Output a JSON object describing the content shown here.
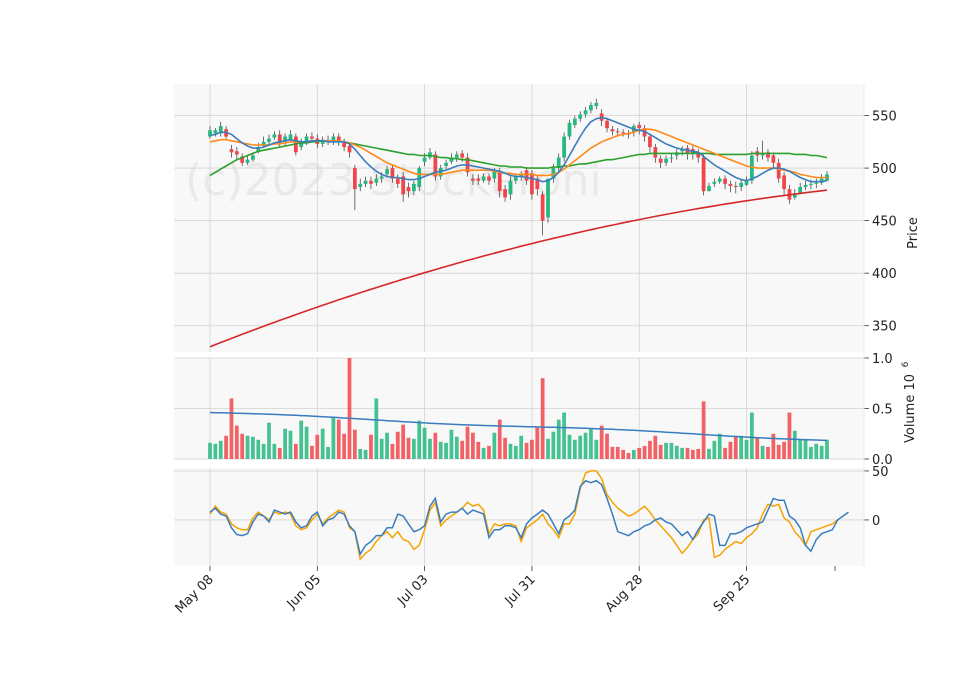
{
  "watermark": "(c)2023 Stockaroni",
  "colors": {
    "up": "#26b97f",
    "down": "#f0464b",
    "ma_blue": "#3a7dbd",
    "ma_orange": "#ff8a1c",
    "ma_green": "#2ca02c",
    "ma_red": "#d62728",
    "osc_blue": "#3a7dbd",
    "osc_orange": "#f5a300",
    "panel_bg": "#f8f8f8",
    "grid": "#d3d3d3"
  },
  "price_panel": {
    "ylabel": "Price",
    "ylim": [
      325,
      580
    ],
    "ticks": [
      350,
      400,
      450,
      500,
      550
    ]
  },
  "volume_panel": {
    "ylabel": "Volume  10",
    "ylabel_exp": "6",
    "ylim": [
      0,
      1.0
    ],
    "ticks": [
      "0.0",
      "0.5",
      "1.0"
    ],
    "tick_values": [
      0,
      0.5,
      1.0
    ]
  },
  "osc_panel": {
    "ylim": [
      -47,
      53
    ],
    "ticks": [
      0,
      50
    ]
  },
  "x_labels": [
    {
      "label": "May 08",
      "index": 0
    },
    {
      "label": "Jun 05",
      "index": 20
    },
    {
      "label": "Jul 03",
      "index": 40
    },
    {
      "label": "Jul 31",
      "index": 60
    },
    {
      "label": "Aug 28",
      "index": 80
    },
    {
      "label": "Sep 25",
      "index": 100
    }
  ],
  "chart_data": {
    "type": "candlestick",
    "title": "",
    "closes": [
      536,
      536,
      540,
      530,
      515,
      513,
      505,
      508,
      512,
      520,
      525,
      528,
      532,
      524,
      530,
      532,
      515,
      525,
      530,
      528,
      523,
      527,
      527,
      530,
      525,
      520,
      515,
      480,
      485,
      488,
      485,
      490,
      492,
      499,
      490,
      485,
      475,
      478,
      485,
      500,
      510,
      515,
      492,
      500,
      505,
      510,
      513,
      510,
      496,
      488,
      488,
      492,
      488,
      497,
      478,
      472,
      488,
      492,
      494,
      488,
      475,
      480,
      450,
      490,
      500,
      510,
      530,
      543,
      547,
      551,
      555,
      560,
      562,
      545,
      538,
      535,
      534,
      533,
      532,
      540,
      538,
      530,
      520,
      510,
      505,
      509,
      510,
      515,
      518,
      514,
      514,
      510,
      478,
      483,
      487,
      490,
      485,
      483,
      482,
      486,
      488,
      512,
      512,
      514,
      510,
      505,
      490,
      480,
      470,
      476,
      482,
      484,
      485,
      486,
      490,
      494
    ],
    "opens": [
      530,
      533,
      533,
      537,
      518,
      516,
      511,
      505,
      508,
      516,
      521,
      525,
      529,
      532,
      525,
      527,
      530,
      520,
      525,
      530,
      528,
      523,
      525,
      525,
      530,
      524,
      521,
      500,
      482,
      485,
      488,
      486,
      490,
      494,
      500,
      490,
      492,
      482,
      478,
      482,
      506,
      510,
      513,
      492,
      502,
      506,
      510,
      514,
      510,
      490,
      490,
      488,
      492,
      490,
      496,
      480,
      475,
      488,
      492,
      498,
      495,
      490,
      475,
      453,
      490,
      500,
      510,
      530,
      541,
      547,
      551,
      555,
      559,
      552,
      545,
      537,
      535,
      534,
      533,
      534,
      541,
      538,
      530,
      520,
      509,
      505,
      510,
      512,
      516,
      519,
      518,
      515,
      510,
      478,
      485,
      487,
      490,
      485,
      483,
      482,
      484,
      488,
      516,
      512,
      515,
      512,
      505,
      493,
      480,
      472,
      476,
      482,
      484,
      485,
      486,
      488
    ],
    "highs": [
      540,
      538,
      544,
      540,
      522,
      520,
      514,
      512,
      515,
      524,
      530,
      532,
      535,
      536,
      533,
      536,
      533,
      528,
      533,
      534,
      532,
      530,
      531,
      533,
      533,
      528,
      524,
      503,
      490,
      492,
      492,
      494,
      496,
      502,
      503,
      494,
      496,
      486,
      488,
      502,
      514,
      519,
      516,
      503,
      508,
      514,
      516,
      517,
      514,
      494,
      494,
      495,
      495,
      500,
      500,
      484,
      492,
      495,
      497,
      501,
      498,
      494,
      478,
      465,
      504,
      514,
      534,
      546,
      550,
      554,
      558,
      563,
      566,
      556,
      548,
      540,
      538,
      537,
      536,
      542,
      544,
      541,
      533,
      523,
      512,
      512,
      514,
      518,
      521,
      522,
      521,
      518,
      513,
      486,
      490,
      492,
      493,
      488,
      487,
      490,
      492,
      516,
      520,
      526,
      518,
      515,
      509,
      496,
      484,
      480,
      486,
      488,
      489,
      490,
      494,
      497
    ],
    "lows": [
      528,
      530,
      530,
      528,
      510,
      508,
      502,
      503,
      506,
      514,
      519,
      522,
      527,
      520,
      521,
      525,
      512,
      517,
      522,
      524,
      519,
      520,
      522,
      522,
      521,
      516,
      510,
      460,
      478,
      482,
      480,
      483,
      486,
      491,
      486,
      481,
      468,
      472,
      474,
      478,
      502,
      508,
      488,
      489,
      499,
      504,
      506,
      506,
      492,
      484,
      484,
      486,
      484,
      486,
      472,
      468,
      470,
      485,
      488,
      484,
      470,
      474,
      436,
      448,
      486,
      496,
      506,
      527,
      538,
      544,
      548,
      552,
      556,
      540,
      534,
      531,
      530,
      530,
      528,
      530,
      532,
      525,
      515,
      505,
      500,
      502,
      505,
      508,
      512,
      508,
      508,
      505,
      474,
      478,
      482,
      485,
      480,
      477,
      476,
      478,
      483,
      485,
      506,
      508,
      506,
      500,
      486,
      474,
      466,
      470,
      476,
      479,
      480,
      481,
      484,
      488
    ],
    "volumes": [
      0.16,
      0.15,
      0.18,
      0.23,
      0.6,
      0.33,
      0.25,
      0.23,
      0.22,
      0.19,
      0.15,
      0.36,
      0.15,
      0.11,
      0.3,
      0.28,
      0.15,
      0.38,
      0.32,
      0.13,
      0.24,
      0.3,
      0.12,
      0.41,
      0.39,
      0.25,
      1.0,
      0.29,
      0.1,
      0.09,
      0.24,
      0.6,
      0.2,
      0.26,
      0.15,
      0.27,
      0.34,
      0.21,
      0.2,
      0.38,
      0.31,
      0.2,
      0.26,
      0.17,
      0.16,
      0.29,
      0.22,
      0.18,
      0.32,
      0.26,
      0.17,
      0.11,
      0.13,
      0.26,
      0.39,
      0.21,
      0.15,
      0.13,
      0.23,
      0.16,
      0.19,
      0.31,
      0.8,
      0.2,
      0.27,
      0.39,
      0.46,
      0.24,
      0.19,
      0.23,
      0.26,
      0.3,
      0.19,
      0.33,
      0.25,
      0.12,
      0.12,
      0.09,
      0.06,
      0.09,
      0.11,
      0.13,
      0.18,
      0.23,
      0.14,
      0.16,
      0.16,
      0.13,
      0.11,
      0.11,
      0.09,
      0.1,
      0.57,
      0.1,
      0.18,
      0.25,
      0.11,
      0.17,
      0.23,
      0.23,
      0.19,
      0.46,
      0.21,
      0.13,
      0.12,
      0.25,
      0.14,
      0.17,
      0.46,
      0.28,
      0.19,
      0.2,
      0.12,
      0.15,
      0.13,
      0.19
    ],
    "osc_blue": [
      8,
      12,
      6,
      4,
      -8,
      -15,
      -16,
      -14,
      -2,
      6,
      4,
      -2,
      10,
      8,
      6,
      8,
      -2,
      -8,
      -6,
      4,
      8,
      -6,
      0,
      2,
      8,
      6,
      -6,
      -12,
      -35,
      -26,
      -22,
      -16,
      -16,
      -8,
      -8,
      6,
      4,
      -4,
      -12,
      -10,
      -6,
      14,
      22,
      -2,
      6,
      8,
      8,
      12,
      6,
      10,
      8,
      6,
      -18,
      -10,
      -10,
      -6,
      -6,
      -8,
      -18,
      -4,
      2,
      6,
      10,
      6,
      -4,
      -14,
      0,
      4,
      10,
      34,
      40,
      38,
      40,
      36,
      22,
      6,
      -12,
      -14,
      -16,
      -12,
      -10,
      -6,
      -4,
      0,
      2,
      -2,
      -4,
      -10,
      -16,
      -12,
      -20,
      -10,
      -2,
      6,
      4,
      -26,
      -26,
      -14,
      -14,
      -12,
      -8,
      -6,
      -4,
      -2,
      10,
      22,
      20,
      20,
      4,
      0,
      -8,
      -26,
      -32,
      -20,
      -14,
      -12,
      -10,
      0,
      4,
      8
    ],
    "osc_orange": [
      6,
      14,
      8,
      6,
      -4,
      -8,
      -10,
      -10,
      2,
      8,
      4,
      0,
      8,
      6,
      8,
      6,
      -6,
      -10,
      -8,
      0,
      6,
      -4,
      2,
      6,
      10,
      8,
      -8,
      -12,
      -40,
      -34,
      -30,
      -22,
      -16,
      -12,
      -18,
      -12,
      -20,
      -22,
      -30,
      -26,
      -10,
      10,
      18,
      -6,
      0,
      4,
      8,
      12,
      18,
      14,
      16,
      10,
      -14,
      -4,
      -6,
      -4,
      -4,
      -6,
      -22,
      -8,
      -4,
      0,
      6,
      -4,
      -10,
      -18,
      -4,
      -4,
      6,
      32,
      48,
      50,
      50,
      42,
      26,
      18,
      12,
      8,
      4,
      6,
      10,
      14,
      8,
      0,
      -6,
      -12,
      -18,
      -26,
      -34,
      -28,
      -20,
      -14,
      0,
      2,
      -38,
      -36,
      -30,
      -26,
      -22,
      -24,
      -18,
      -14,
      -8,
      6,
      16,
      14,
      16,
      2,
      -2,
      -12,
      -18,
      -26,
      -12,
      -10,
      -8,
      -6,
      -4,
      0
    ],
    "ma_blue": [
      531,
      532,
      534,
      534,
      532,
      528,
      524,
      521,
      519,
      519,
      520,
      522,
      524,
      525,
      526,
      527,
      526,
      525,
      525,
      526,
      526,
      526,
      525,
      525,
      525,
      525,
      523,
      518,
      512,
      506,
      501,
      497,
      494,
      492,
      491,
      491,
      490,
      489,
      489,
      490,
      492,
      494,
      496,
      497,
      498,
      500,
      502,
      503,
      503,
      502,
      501,
      500,
      499,
      498,
      497,
      495,
      493,
      492,
      492,
      491,
      490,
      489,
      487,
      488,
      491,
      496,
      503,
      512,
      521,
      530,
      538,
      544,
      547,
      548,
      547,
      545,
      543,
      541,
      539,
      537,
      536,
      535,
      532,
      529,
      526,
      523,
      521,
      519,
      518,
      517,
      516,
      515,
      511,
      507,
      503,
      500,
      497,
      494,
      491,
      489,
      488,
      490,
      492,
      495,
      498,
      500,
      500,
      499,
      497,
      494,
      491,
      489,
      487,
      487,
      487,
      488
    ],
    "ma_orange": [
      525,
      526,
      527,
      527,
      526,
      525,
      524,
      523,
      522,
      522,
      522,
      522,
      523,
      523,
      524,
      525,
      525,
      525,
      525,
      526,
      526,
      526,
      526,
      526,
      526,
      525,
      524,
      522,
      520,
      517,
      514,
      511,
      508,
      505,
      503,
      501,
      499,
      497,
      495,
      494,
      494,
      494,
      494,
      494,
      495,
      496,
      497,
      498,
      498,
      498,
      498,
      498,
      498,
      497,
      496,
      495,
      495,
      494,
      494,
      494,
      494,
      493,
      493,
      493,
      494,
      496,
      499,
      503,
      507,
      511,
      515,
      519,
      522,
      525,
      527,
      529,
      531,
      532,
      533,
      534,
      536,
      537,
      537,
      536,
      534,
      532,
      530,
      528,
      526,
      524,
      522,
      520,
      518,
      516,
      514,
      512,
      510,
      508,
      506,
      504,
      502,
      501,
      500,
      500,
      500,
      500,
      499,
      498,
      497,
      496,
      494,
      493,
      492,
      491,
      491,
      491
    ],
    "ma_green": [
      493,
      496,
      499,
      502,
      505,
      508,
      510,
      512,
      514,
      516,
      517,
      518,
      519,
      520,
      521,
      522,
      523,
      524,
      524,
      525,
      525,
      526,
      526,
      526,
      525,
      525,
      524,
      523,
      522,
      521,
      520,
      519,
      518,
      517,
      516,
      515,
      514,
      513,
      513,
      512,
      512,
      512,
      511,
      510,
      510,
      509,
      509,
      508,
      508,
      507,
      506,
      505,
      504,
      503,
      502,
      502,
      501,
      501,
      501,
      500,
      500,
      500,
      500,
      500,
      501,
      501,
      502,
      502,
      503,
      504,
      504,
      505,
      506,
      507,
      508,
      508,
      509,
      510,
      511,
      512,
      513,
      513,
      514,
      514,
      514,
      514,
      514,
      514,
      514,
      514,
      514,
      514,
      514,
      514,
      513,
      513,
      513,
      513,
      513,
      513,
      513,
      514,
      514,
      514,
      514,
      514,
      514,
      514,
      514,
      513,
      513,
      513,
      512,
      512,
      511,
      510
    ],
    "ma_red_start": 330,
    "ma_red_end": 479,
    "volume_ma_start": 0.46,
    "volume_ma_end": 0.19
  }
}
